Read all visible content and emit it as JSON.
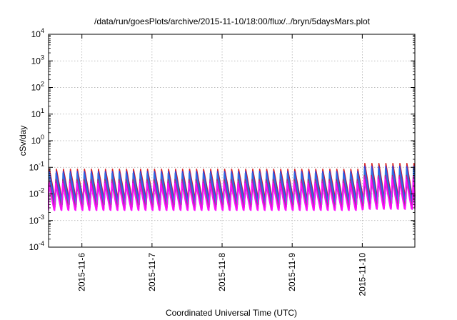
{
  "chart_data": {
    "type": "line",
    "title": "/data/run/goesPlots/archive/2015-11-10/18:00/flux/../bryn/5daysMars.plot",
    "xlabel": "Coordinated Universal Time (UTC)",
    "ylabel": "cSv/day",
    "yscale": "log",
    "ylim": [
      0.0001,
      10000
    ],
    "y_ticks": [
      {
        "base": "10",
        "exp": "-4",
        "value": 0.0001
      },
      {
        "base": "10",
        "exp": "-3",
        "value": 0.001
      },
      {
        "base": "10",
        "exp": "-2",
        "value": 0.01
      },
      {
        "base": "10",
        "exp": "-1",
        "value": 0.1
      },
      {
        "base": "10",
        "exp": "0",
        "value": 1
      },
      {
        "base": "10",
        "exp": "1",
        "value": 10
      },
      {
        "base": "10",
        "exp": "2",
        "value": 100
      },
      {
        "base": "10",
        "exp": "3",
        "value": 1000
      },
      {
        "base": "10",
        "exp": "4",
        "value": 10000
      }
    ],
    "xlim": [
      "2015-11-05T12:35",
      "2015-11-10T18:00"
    ],
    "x_ticks": [
      "2015-11-6",
      "2015-11-7",
      "2015-11-8",
      "2015-11-9",
      "2015-11-10"
    ],
    "grid": true,
    "legend": "none",
    "sawtooth": {
      "cycles_per_day": 10,
      "series_colors": [
        "#d62020",
        "#3a3ad8",
        "#10a8a8",
        "#3070e0",
        "#a03070",
        "#c818c8",
        "#ff10ff"
      ],
      "series_peak_values": [
        0.085,
        0.07,
        0.045,
        0.06,
        0.035,
        0.03,
        0.025
      ],
      "series_trough_values": [
        0.007,
        0.006,
        0.004,
        0.005,
        0.0032,
        0.0028,
        0.0024
      ],
      "late_peak_values": [
        0.14,
        0.11,
        0.07,
        0.09,
        0.05,
        0.045,
        0.035
      ],
      "late_start": "2015-11-10T00:00"
    }
  }
}
